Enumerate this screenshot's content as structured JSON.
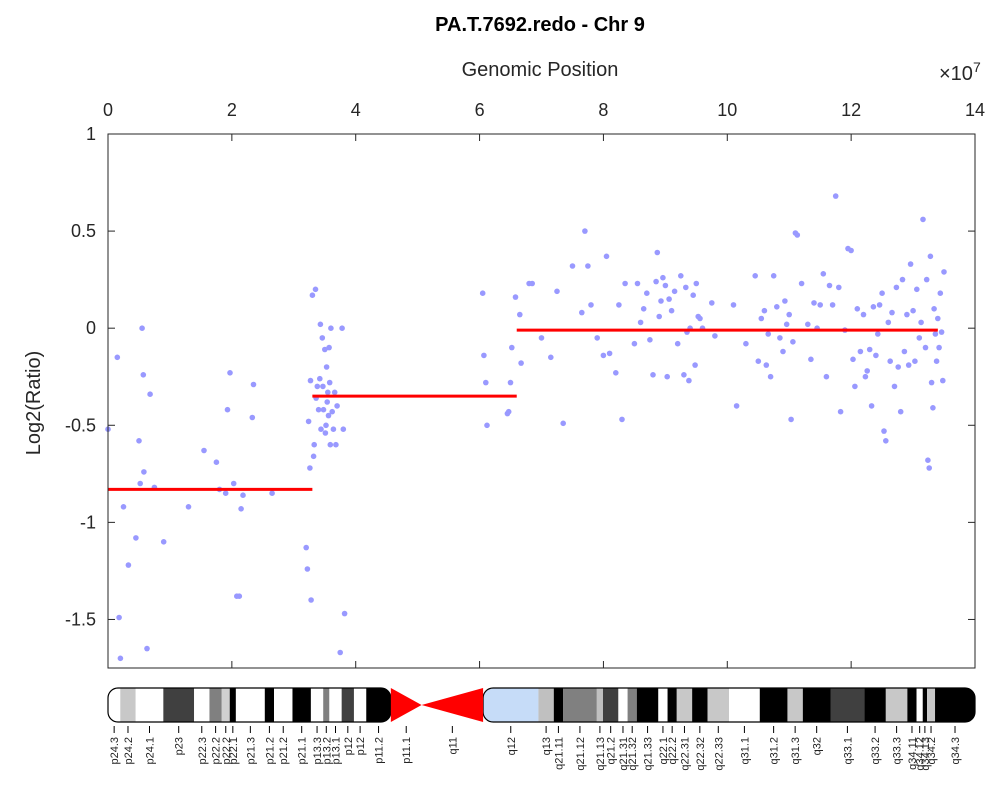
{
  "chart_data": {
    "type": "scatter",
    "title": "PA.T.7692.redo - Chr 9",
    "xlabel": "Genomic Position",
    "ylabel": "Log2(Ratio)",
    "x_exponent_label": "×10",
    "x_exponent_power": "7",
    "x_scale_factor": 10000000,
    "xlim": [
      0,
      140000000
    ],
    "ylim": [
      -1.75,
      1
    ],
    "x_ticks": [
      0,
      2,
      4,
      6,
      8,
      10,
      12,
      14
    ],
    "y_ticks": [
      1,
      0.5,
      0,
      -0.5,
      -1,
      -1.5
    ],
    "point_color": "#9999ff",
    "segment_color": "#ff0000",
    "segments": [
      {
        "x_start": 0,
        "x_end": 33000000,
        "y": -0.83
      },
      {
        "x_start": 33000000,
        "x_end": 66000000,
        "y": -0.35
      },
      {
        "x_start": 66000000,
        "x_end": 134000000,
        "y": -0.01
      }
    ],
    "points": [
      [
        0,
        -0.52
      ],
      [
        1500000,
        -0.15
      ],
      [
        1800000,
        -1.49
      ],
      [
        2000000,
        -1.7
      ],
      [
        2500000,
        -0.92
      ],
      [
        3300000,
        -1.22
      ],
      [
        4500000,
        -1.08
      ],
      [
        5000000,
        -0.58
      ],
      [
        5200000,
        -0.8
      ],
      [
        5500000,
        0.0
      ],
      [
        5700000,
        -0.24
      ],
      [
        5800000,
        -0.74
      ],
      [
        6300000,
        -1.65
      ],
      [
        6800000,
        -0.34
      ],
      [
        7500000,
        -0.82
      ],
      [
        9000000,
        -1.1
      ],
      [
        13000000,
        -0.92
      ],
      [
        15500000,
        -0.63
      ],
      [
        17500000,
        -0.69
      ],
      [
        18000000,
        -0.83
      ],
      [
        19000000,
        -0.85
      ],
      [
        19300000,
        -0.42
      ],
      [
        19700000,
        -0.23
      ],
      [
        20300000,
        -0.8
      ],
      [
        20800000,
        -1.38
      ],
      [
        21200000,
        -1.38
      ],
      [
        21500000,
        -0.93
      ],
      [
        21800000,
        -0.86
      ],
      [
        22000000,
        -1.78
      ],
      [
        23300000,
        -0.46
      ],
      [
        23500000,
        -0.29
      ],
      [
        26500000,
        -0.85
      ],
      [
        32000000,
        -1.13
      ],
      [
        32200000,
        -1.24
      ],
      [
        32400000,
        -0.48
      ],
      [
        32600000,
        -0.72
      ],
      [
        32700000,
        -0.27
      ],
      [
        32800000,
        -1.4
      ],
      [
        33000000,
        0.17
      ],
      [
        33200000,
        -0.66
      ],
      [
        33300000,
        -0.6
      ],
      [
        33500000,
        0.2
      ],
      [
        33600000,
        -0.36
      ],
      [
        33800000,
        -0.3
      ],
      [
        34000000,
        -0.42
      ],
      [
        34200000,
        -0.26
      ],
      [
        34300000,
        0.02
      ],
      [
        34400000,
        -0.52
      ],
      [
        34600000,
        -0.05
      ],
      [
        34700000,
        -0.3
      ],
      [
        34800000,
        -0.42
      ],
      [
        35000000,
        -0.11
      ],
      [
        35100000,
        -0.54
      ],
      [
        35200000,
        -0.5
      ],
      [
        35300000,
        -0.2
      ],
      [
        35400000,
        -0.38
      ],
      [
        35500000,
        -0.33
      ],
      [
        35600000,
        -0.45
      ],
      [
        35700000,
        -0.1
      ],
      [
        35800000,
        -0.28
      ],
      [
        35900000,
        -0.6
      ],
      [
        36000000,
        0.0
      ],
      [
        36200000,
        -0.43
      ],
      [
        36400000,
        -0.52
      ],
      [
        36600000,
        -0.33
      ],
      [
        36800000,
        -0.6
      ],
      [
        37000000,
        -0.4
      ],
      [
        37500000,
        -1.67
      ],
      [
        37800000,
        0.0
      ],
      [
        38000000,
        -0.52
      ],
      [
        38200000,
        -1.47
      ],
      [
        60500000,
        0.18
      ],
      [
        60700000,
        -0.14
      ],
      [
        61000000,
        -0.28
      ],
      [
        61200000,
        -0.5
      ],
      [
        64500000,
        -0.44
      ],
      [
        64700000,
        -0.43
      ],
      [
        65000000,
        -0.28
      ],
      [
        65200000,
        -0.1
      ],
      [
        65800000,
        0.16
      ],
      [
        66500000,
        0.07
      ],
      [
        66700000,
        -0.18
      ],
      [
        68000000,
        0.23
      ],
      [
        68500000,
        0.23
      ],
      [
        70000000,
        -0.05
      ],
      [
        71500000,
        -0.15
      ],
      [
        72500000,
        0.19
      ],
      [
        73500000,
        -0.49
      ],
      [
        75000000,
        0.32
      ],
      [
        76500000,
        0.08
      ],
      [
        77000000,
        0.5
      ],
      [
        77500000,
        0.32
      ],
      [
        78000000,
        0.12
      ],
      [
        79000000,
        -0.05
      ],
      [
        80000000,
        -0.14
      ],
      [
        80500000,
        0.37
      ],
      [
        81000000,
        -0.13
      ],
      [
        82000000,
        -0.23
      ],
      [
        82500000,
        0.12
      ],
      [
        83000000,
        -0.47
      ],
      [
        83500000,
        0.23
      ],
      [
        85000000,
        -0.08
      ],
      [
        85500000,
        0.23
      ],
      [
        86000000,
        0.03
      ],
      [
        86500000,
        0.1
      ],
      [
        87000000,
        0.18
      ],
      [
        87500000,
        -0.06
      ],
      [
        88000000,
        -0.24
      ],
      [
        88500000,
        0.24
      ],
      [
        88700000,
        0.39
      ],
      [
        89000000,
        0.06
      ],
      [
        89300000,
        0.14
      ],
      [
        89600000,
        0.26
      ],
      [
        90000000,
        0.22
      ],
      [
        90300000,
        -0.25
      ],
      [
        90600000,
        0.15
      ],
      [
        91000000,
        0.09
      ],
      [
        91500000,
        0.19
      ],
      [
        92000000,
        -0.08
      ],
      [
        92500000,
        0.27
      ],
      [
        93000000,
        -0.24
      ],
      [
        93300000,
        0.21
      ],
      [
        93500000,
        -0.02
      ],
      [
        93800000,
        -0.27
      ],
      [
        94000000,
        0.0
      ],
      [
        94500000,
        0.17
      ],
      [
        94800000,
        -0.19
      ],
      [
        95000000,
        0.23
      ],
      [
        95300000,
        0.06
      ],
      [
        95600000,
        0.05
      ],
      [
        96000000,
        0.0
      ],
      [
        97500000,
        0.13
      ],
      [
        98000000,
        -0.04
      ],
      [
        101000000,
        0.12
      ],
      [
        101500000,
        -0.4
      ],
      [
        103000000,
        -0.08
      ],
      [
        104500000,
        0.27
      ],
      [
        105000000,
        -0.17
      ],
      [
        105500000,
        0.05
      ],
      [
        106000000,
        0.09
      ],
      [
        106300000,
        -0.19
      ],
      [
        106600000,
        -0.03
      ],
      [
        107000000,
        -0.25
      ],
      [
        107500000,
        0.27
      ],
      [
        108000000,
        0.11
      ],
      [
        108500000,
        -0.05
      ],
      [
        109000000,
        -0.12
      ],
      [
        109300000,
        0.14
      ],
      [
        109600000,
        0.02
      ],
      [
        110000000,
        0.07
      ],
      [
        110300000,
        -0.47
      ],
      [
        110600000,
        -0.07
      ],
      [
        111000000,
        0.49
      ],
      [
        111300000,
        0.48
      ],
      [
        112000000,
        0.23
      ],
      [
        113000000,
        0.02
      ],
      [
        113500000,
        -0.16
      ],
      [
        114000000,
        0.13
      ],
      [
        114500000,
        0.0
      ],
      [
        115000000,
        0.12
      ],
      [
        115500000,
        0.28
      ],
      [
        116000000,
        -0.25
      ],
      [
        116500000,
        0.22
      ],
      [
        117000000,
        0.12
      ],
      [
        117500000,
        0.68
      ],
      [
        118000000,
        0.21
      ],
      [
        118300000,
        -0.43
      ],
      [
        119000000,
        -0.01
      ],
      [
        119500000,
        0.41
      ],
      [
        120000000,
        0.4
      ],
      [
        120300000,
        -0.16
      ],
      [
        120600000,
        -0.3
      ],
      [
        121000000,
        0.1
      ],
      [
        121500000,
        -0.12
      ],
      [
        122000000,
        0.07
      ],
      [
        122300000,
        -0.25
      ],
      [
        122600000,
        -0.22
      ],
      [
        123000000,
        -0.11
      ],
      [
        123300000,
        -0.4
      ],
      [
        123600000,
        0.11
      ],
      [
        124000000,
        -0.14
      ],
      [
        124300000,
        -0.03
      ],
      [
        124600000,
        0.12
      ],
      [
        125000000,
        0.18
      ],
      [
        125300000,
        -0.53
      ],
      [
        125600000,
        -0.58
      ],
      [
        126000000,
        0.03
      ],
      [
        126300000,
        -0.17
      ],
      [
        126600000,
        0.08
      ],
      [
        127000000,
        -0.3
      ],
      [
        127300000,
        0.21
      ],
      [
        127600000,
        -0.2
      ],
      [
        128000000,
        -0.43
      ],
      [
        128300000,
        0.25
      ],
      [
        128600000,
        -0.12
      ],
      [
        129000000,
        0.07
      ],
      [
        129300000,
        -0.19
      ],
      [
        129600000,
        0.33
      ],
      [
        130000000,
        0.09
      ],
      [
        130300000,
        -0.17
      ],
      [
        130600000,
        0.2
      ],
      [
        131000000,
        -0.05
      ],
      [
        131300000,
        0.03
      ],
      [
        131600000,
        0.56
      ],
      [
        132000000,
        -0.1
      ],
      [
        132200000,
        0.25
      ],
      [
        132400000,
        -0.68
      ],
      [
        132600000,
        -0.72
      ],
      [
        132800000,
        0.37
      ],
      [
        133000000,
        -0.28
      ],
      [
        133200000,
        -0.41
      ],
      [
        133400000,
        0.1
      ],
      [
        133600000,
        -0.03
      ],
      [
        133800000,
        -0.17
      ],
      [
        134000000,
        0.05
      ],
      [
        134200000,
        -0.1
      ],
      [
        134400000,
        0.18
      ],
      [
        134600000,
        -0.02
      ],
      [
        134800000,
        -0.27
      ],
      [
        135000000,
        0.29
      ]
    ],
    "ideogram": {
      "centromere_color": "#ff0000",
      "bands": [
        {
          "name": "p24.3",
          "start": 0,
          "end": 2000000,
          "color": "#ffffff"
        },
        {
          "name": "p24.2",
          "start": 2000000,
          "end": 4500000,
          "color": "#c8c8c8"
        },
        {
          "name": "p24.1",
          "start": 4500000,
          "end": 9000000,
          "color": "#ffffff"
        },
        {
          "name": "p23",
          "start": 9000000,
          "end": 14000000,
          "color": "#404040"
        },
        {
          "name": "p22.3",
          "start": 14000000,
          "end": 16500000,
          "color": "#ffffff"
        },
        {
          "name": "p22.2",
          "start": 16500000,
          "end": 18500000,
          "color": "#808080"
        },
        {
          "name": "p22.2",
          "start": 18500000,
          "end": 19800000,
          "color": "#d0d0d0"
        },
        {
          "name": "p22.1",
          "start": 19800000,
          "end": 20800000,
          "color": "#000000"
        },
        {
          "name": "p21.3",
          "start": 20800000,
          "end": 25500000,
          "color": "#ffffff"
        },
        {
          "name": "p21.2",
          "start": 25500000,
          "end": 27000000,
          "color": "#000000"
        },
        {
          "name": "p21.2",
          "start": 27000000,
          "end": 30000000,
          "color": "#ffffff"
        },
        {
          "name": "p21.1",
          "start": 30000000,
          "end": 33000000,
          "color": "#000000"
        },
        {
          "name": "p13.3",
          "start": 33000000,
          "end": 35000000,
          "color": "#ffffff"
        },
        {
          "name": "p13.2",
          "start": 35000000,
          "end": 36000000,
          "color": "#808080"
        },
        {
          "name": "p13.1",
          "start": 36000000,
          "end": 38000000,
          "color": "#ffffff"
        },
        {
          "name": "p12",
          "start": 38000000,
          "end": 40000000,
          "color": "#404040"
        },
        {
          "name": "p12",
          "start": 40000000,
          "end": 42000000,
          "color": "#ffffff"
        },
        {
          "name": "p11.2",
          "start": 42000000,
          "end": 46000000,
          "color": "#000000"
        },
        {
          "name": "p11.1",
          "start": 46000000,
          "end": 51000000,
          "color": "cen"
        },
        {
          "name": "q11",
          "start": 51000000,
          "end": 61000000,
          "color": "cen"
        },
        {
          "name": "q12",
          "start": 61000000,
          "end": 70000000,
          "color": "#c6dcf8"
        },
        {
          "name": "q13",
          "start": 70000000,
          "end": 72500000,
          "color": "#c0c0c0"
        },
        {
          "name": "q21.11",
          "start": 72500000,
          "end": 74000000,
          "color": "#000000"
        },
        {
          "name": "q21.12",
          "start": 74000000,
          "end": 79500000,
          "color": "#808080"
        },
        {
          "name": "q21.13",
          "start": 79500000,
          "end": 80500000,
          "color": "#c0c0c0"
        },
        {
          "name": "q21.2",
          "start": 80500000,
          "end": 83000000,
          "color": "#404040"
        },
        {
          "name": "q21.31",
          "start": 83000000,
          "end": 84500000,
          "color": "#ffffff"
        },
        {
          "name": "q21.32",
          "start": 84500000,
          "end": 86000000,
          "color": "#808080"
        },
        {
          "name": "q21.33",
          "start": 86000000,
          "end": 89500000,
          "color": "#000000"
        },
        {
          "name": "q22.1",
          "start": 89500000,
          "end": 91000000,
          "color": "#ffffff"
        },
        {
          "name": "q22.2",
          "start": 91000000,
          "end": 92500000,
          "color": "#000000"
        },
        {
          "name": "q22.31",
          "start": 92500000,
          "end": 95000000,
          "color": "#c8c8c8"
        },
        {
          "name": "q22.32",
          "start": 95000000,
          "end": 97500000,
          "color": "#000000"
        },
        {
          "name": "q22.33",
          "start": 97500000,
          "end": 101000000,
          "color": "#c8c8c8"
        },
        {
          "name": "q31.1",
          "start": 101000000,
          "end": 106000000,
          "color": "#ffffff"
        },
        {
          "name": "q31.2",
          "start": 106000000,
          "end": 110500000,
          "color": "#000000"
        },
        {
          "name": "q31.3",
          "start": 110500000,
          "end": 113000000,
          "color": "#c8c8c8"
        },
        {
          "name": "q32",
          "start": 113000000,
          "end": 117500000,
          "color": "#000000"
        },
        {
          "name": "q33.1",
          "start": 117500000,
          "end": 123000000,
          "color": "#404040"
        },
        {
          "name": "q33.2",
          "start": 123000000,
          "end": 126500000,
          "color": "#000000"
        },
        {
          "name": "q33.3",
          "start": 126500000,
          "end": 130000000,
          "color": "#c8c8c8"
        },
        {
          "name": "q34.11",
          "start": 130000000,
          "end": 131500000,
          "color": "#000000"
        },
        {
          "name": "q34.12",
          "start": 131500000,
          "end": 132500000,
          "color": "#ffffff"
        },
        {
          "name": "q34.13",
          "start": 132500000,
          "end": 133200000,
          "color": "#000000"
        },
        {
          "name": "q34.2",
          "start": 133200000,
          "end": 134500000,
          "color": "#c8c8c8"
        },
        {
          "name": "q34.3",
          "start": 134500000,
          "end": 141000000,
          "color": "#000000"
        }
      ]
    }
  }
}
